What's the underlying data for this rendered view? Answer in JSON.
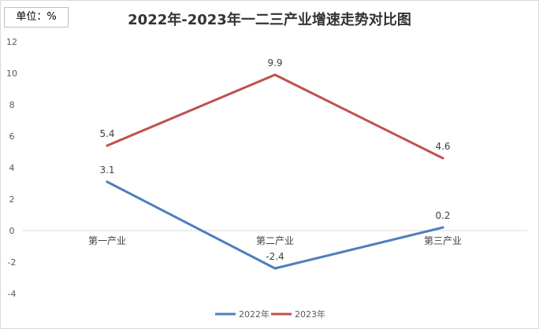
{
  "unit_label": "单位：%",
  "chart_data": {
    "type": "line",
    "title": "2022年-2023年一二三产业增速走势对比图",
    "categories": [
      "第一产业",
      "第二产业",
      "第三产业"
    ],
    "series": [
      {
        "name": "2022年",
        "values": [
          3.1,
          -2.4,
          0.2
        ],
        "labels": [
          "3.1",
          "-2.4",
          "0.2"
        ],
        "color": "#4e7fbd"
      },
      {
        "name": "2023年",
        "values": [
          5.4,
          9.9,
          4.6
        ],
        "labels": [
          "5.4",
          "9.9",
          "4.6"
        ],
        "color": "#c0504d"
      }
    ],
    "yticks": [
      -4,
      -2,
      0,
      2,
      4,
      6,
      8,
      10,
      12
    ],
    "ylim": [
      -4,
      12
    ],
    "grid": false,
    "legend": "bottom-center"
  }
}
